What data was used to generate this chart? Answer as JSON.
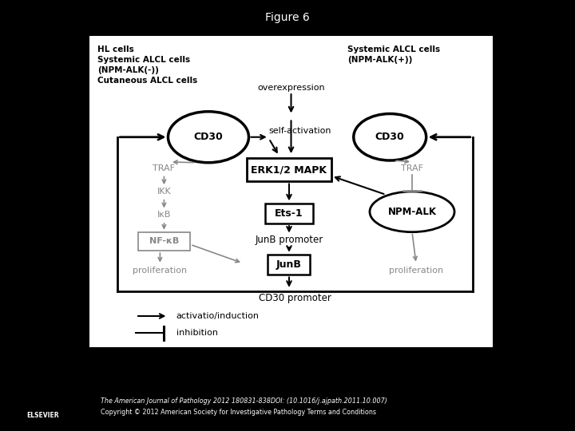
{
  "title": "Figure 6",
  "bg_color": "#000000",
  "panel_bg": "#ffffff",
  "left_label": "HL cells\nSystemic ALCL cells\n(NPM-ALK(-))\nCutaneous ALCL cells",
  "right_label": "Systemic ALCL cells\n(NPM-ALK(+))",
  "footer_line1": "The American Journal of Pathology 2012 180831-838DOI: (10.1016/j.ajpath.2011.10.007)",
  "footer_line2": "Copyright © 2012 American Society for Investigative Pathology Terms and Conditions",
  "black": "#000000",
  "gray": "#888888"
}
